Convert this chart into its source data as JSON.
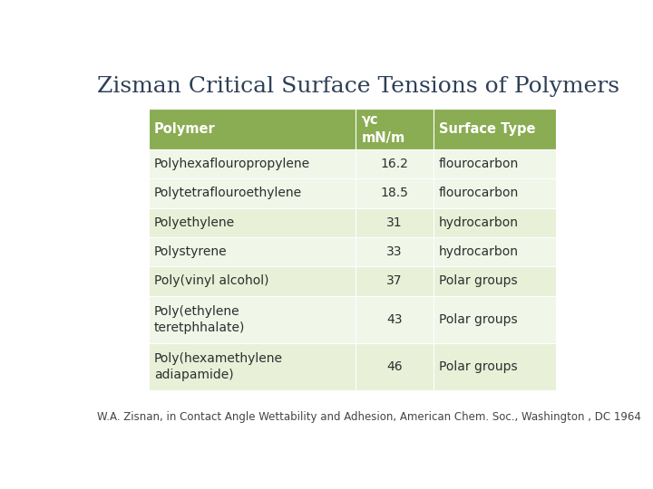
{
  "title": "Zisman Critical Surface Tensions of Polymers",
  "title_color": "#2E4057",
  "title_fontsize": 18,
  "header": [
    "Polymer",
    "γc\nmN/m",
    "Surface Type"
  ],
  "rows": [
    [
      "Polyhexaflouropropylene",
      "16.2",
      "flourocarbon"
    ],
    [
      "Polytetraflouroethylene",
      "18.5",
      "flourocarbon"
    ],
    [
      "Polyethylene",
      "31",
      "hydrocarbon"
    ],
    [
      "Polystyrene",
      "33",
      "hydrocarbon"
    ],
    [
      "Poly(vinyl alcohol)",
      "37",
      "Polar groups"
    ],
    [
      "Poly(ethylene\nteretphhalate)",
      "43",
      "Polar groups"
    ],
    [
      "Poly(hexamethylene\nadiapamide)",
      "46",
      "Polar groups"
    ]
  ],
  "header_bg": "#8aac52",
  "header_text_color": "#ffffff",
  "row_bg_light": "#e8f0d8",
  "row_bg_lighter": "#f0f6e8",
  "row_text_color": "#2E2E2E",
  "footer": "W.A. Zisnan, in Contact Angle Wettability and Adhesion, American Chem. Soc., Washington , DC 1964",
  "footer_fontsize": 8.5,
  "footer_color": "#444444",
  "background_color": "#ffffff"
}
